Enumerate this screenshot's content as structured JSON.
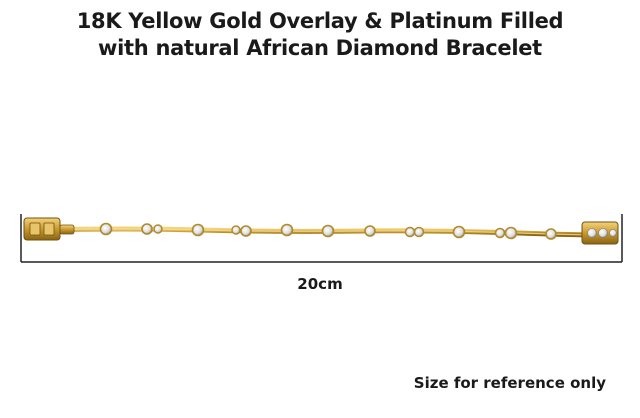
{
  "title": {
    "line1": "18K Yellow Gold Overlay & Platinum Filled",
    "line2": "with natural African Diamond Bracelet"
  },
  "measurement": {
    "label": "20cm"
  },
  "note": "Size for reference only",
  "colors": {
    "gold": "#c99a2e",
    "gold_dark": "#8a6414",
    "diamond": "#e9e9e9",
    "line": "#222222"
  }
}
